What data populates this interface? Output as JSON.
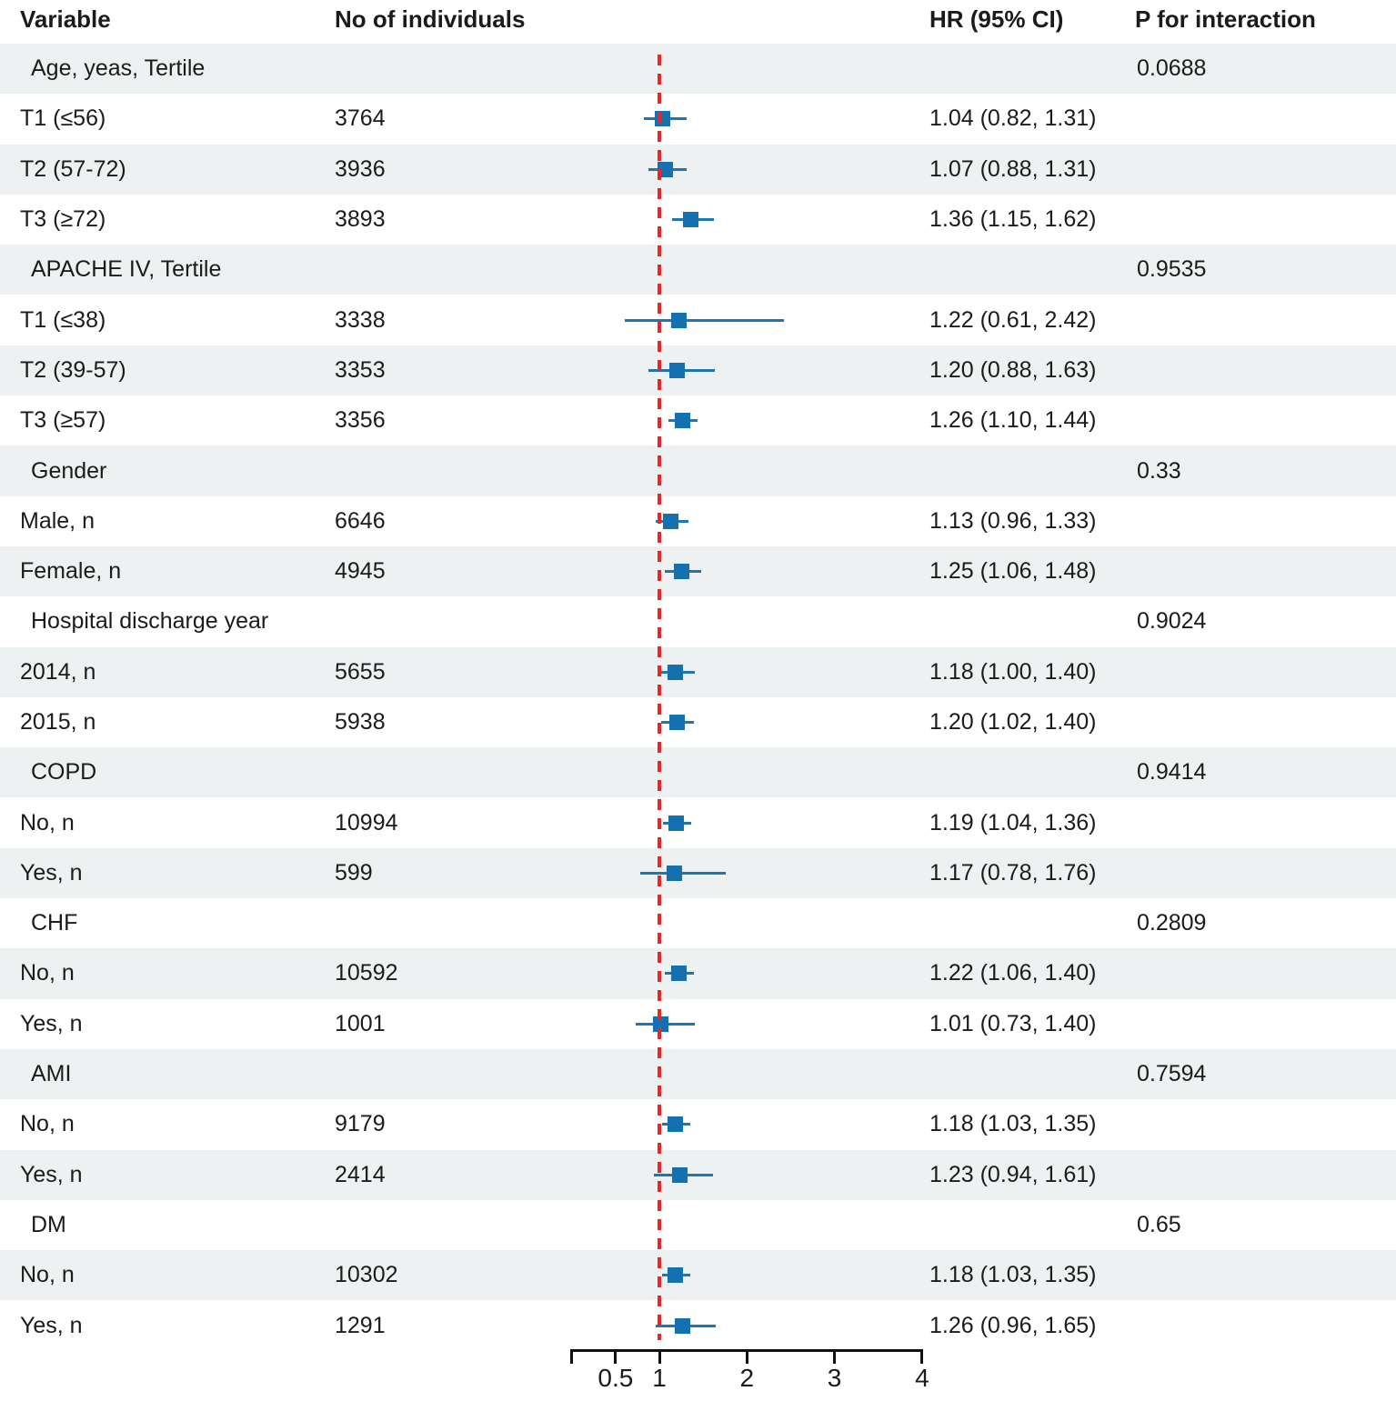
{
  "headers": {
    "variable": "Variable",
    "individuals": "No of individuals",
    "hr": "HR (95% CI)",
    "p": "P for interaction"
  },
  "colors": {
    "marker_blue": "#1470ae",
    "ci_blue": "#1f76b4",
    "ref_red": "#ee2324",
    "stripe_gray": "#eef1f1",
    "text": "#1b1b1b"
  },
  "chart_data": {
    "type": "scatter",
    "variant": "forest-plot",
    "xlabel": "",
    "ylabel": "",
    "axis": {
      "min": 0,
      "max": 4,
      "scale": "linear",
      "reference_line": 1,
      "ticks": [
        {
          "v": 0,
          "label": ""
        },
        {
          "v": 0.5,
          "label": "0.5"
        },
        {
          "v": 1,
          "label": "1"
        },
        {
          "v": 2,
          "label": "2"
        },
        {
          "v": 3,
          "label": "3"
        },
        {
          "v": 4,
          "label": "4"
        }
      ]
    },
    "rows": [
      {
        "type": "section",
        "label": "Age, yeas, Tertile",
        "p": "0.0688"
      },
      {
        "type": "item",
        "label": "T1 (≤56)",
        "n": "3764",
        "hr": 1.04,
        "lo": 0.82,
        "hi": 1.31,
        "hr_text": "1.04 (0.82, 1.31)"
      },
      {
        "type": "item",
        "label": "T2 (57-72)",
        "n": "3936",
        "hr": 1.07,
        "lo": 0.88,
        "hi": 1.31,
        "hr_text": "1.07 (0.88, 1.31)"
      },
      {
        "type": "item",
        "label": "T3 (≥72)",
        "n": "3893",
        "hr": 1.36,
        "lo": 1.15,
        "hi": 1.62,
        "hr_text": "1.36 (1.15, 1.62)"
      },
      {
        "type": "section",
        "label": "APACHE IV, Tertile",
        "p": "0.9535"
      },
      {
        "type": "item",
        "label": "T1 (≤38)",
        "n": "3338",
        "hr": 1.22,
        "lo": 0.61,
        "hi": 2.42,
        "hr_text": "1.22 (0.61, 2.42)"
      },
      {
        "type": "item",
        "label": "T2 (39-57)",
        "n": "3353",
        "hr": 1.2,
        "lo": 0.88,
        "hi": 1.63,
        "hr_text": "1.20 (0.88, 1.63)"
      },
      {
        "type": "item",
        "label": "T3 (≥57)",
        "n": "3356",
        "hr": 1.26,
        "lo": 1.1,
        "hi": 1.44,
        "hr_text": "1.26 (1.10, 1.44)"
      },
      {
        "type": "section",
        "label": "Gender",
        "p": "0.33"
      },
      {
        "type": "item",
        "label": "Male, n",
        "n": "6646",
        "hr": 1.13,
        "lo": 0.96,
        "hi": 1.33,
        "hr_text": "1.13 (0.96, 1.33)"
      },
      {
        "type": "item",
        "label": "Female, n",
        "n": "4945",
        "hr": 1.25,
        "lo": 1.06,
        "hi": 1.48,
        "hr_text": "1.25 (1.06, 1.48)"
      },
      {
        "type": "section",
        "label": "Hospital discharge year",
        "p": "0.9024"
      },
      {
        "type": "item",
        "label": "2014, n",
        "n": "5655",
        "hr": 1.18,
        "lo": 1.0,
        "hi": 1.4,
        "hr_text": "1.18 (1.00, 1.40)"
      },
      {
        "type": "item",
        "label": "2015, n",
        "n": "5938",
        "hr": 1.2,
        "lo": 1.02,
        "hi": 1.4,
        "hr_text": "1.20 (1.02, 1.40)"
      },
      {
        "type": "section",
        "label": "COPD",
        "p": "0.9414"
      },
      {
        "type": "item",
        "label": "No, n",
        "n": "10994",
        "hr": 1.19,
        "lo": 1.04,
        "hi": 1.36,
        "hr_text": "1.19 (1.04, 1.36)"
      },
      {
        "type": "item",
        "label": "Yes, n",
        "n": "599",
        "hr": 1.17,
        "lo": 0.78,
        "hi": 1.76,
        "hr_text": "1.17 (0.78, 1.76)"
      },
      {
        "type": "section",
        "label": "CHF",
        "p": "0.2809"
      },
      {
        "type": "item",
        "label": "No, n",
        "n": "10592",
        "hr": 1.22,
        "lo": 1.06,
        "hi": 1.4,
        "hr_text": "1.22 (1.06, 1.40)"
      },
      {
        "type": "item",
        "label": "Yes, n",
        "n": "1001",
        "hr": 1.01,
        "lo": 0.73,
        "hi": 1.4,
        "hr_text": "1.01 (0.73, 1.40)"
      },
      {
        "type": "section",
        "label": "AMI",
        "p": "0.7594"
      },
      {
        "type": "item",
        "label": "No, n",
        "n": "9179",
        "hr": 1.18,
        "lo": 1.03,
        "hi": 1.35,
        "hr_text": "1.18 (1.03, 1.35)"
      },
      {
        "type": "item",
        "label": "Yes, n",
        "n": "2414",
        "hr": 1.23,
        "lo": 0.94,
        "hi": 1.61,
        "hr_text": "1.23 (0.94, 1.61)"
      },
      {
        "type": "section",
        "label": "DM",
        "p": "0.65"
      },
      {
        "type": "item",
        "label": "No, n",
        "n": "10302",
        "hr": 1.18,
        "lo": 1.03,
        "hi": 1.35,
        "hr_text": "1.18 (1.03, 1.35)"
      },
      {
        "type": "item",
        "label": "Yes, n",
        "n": "1291",
        "hr": 1.26,
        "lo": 0.96,
        "hi": 1.65,
        "hr_text": "1.26 (0.96, 1.65)"
      }
    ]
  }
}
